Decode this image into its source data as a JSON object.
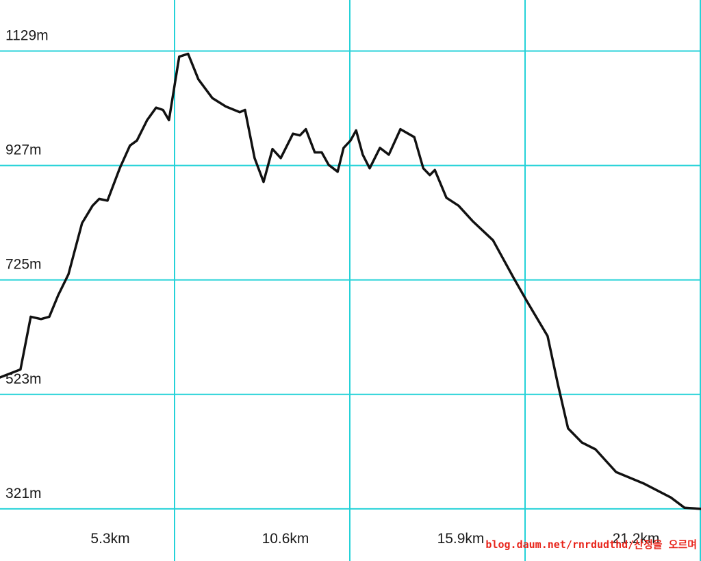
{
  "chart_data": {
    "type": "line",
    "x": [
      0,
      0.62,
      0.93,
      1.24,
      1.49,
      1.76,
      2.07,
      2.48,
      2.8,
      3.0,
      3.25,
      3.62,
      3.93,
      4.14,
      4.45,
      4.72,
      4.93,
      5.11,
      5.42,
      5.69,
      6.0,
      6.42,
      6.83,
      7.25,
      7.41,
      7.7,
      7.97,
      8.24,
      8.49,
      8.86,
      9.07,
      9.25,
      9.52,
      9.73,
      9.94,
      10.21,
      10.39,
      10.6,
      10.77,
      10.97,
      11.18,
      11.49,
      11.76,
      12.11,
      12.53,
      12.8,
      13.0,
      13.15,
      13.5,
      13.87,
      14.29,
      14.91,
      15.53,
      15.94,
      16.56,
      16.87,
      17.18,
      17.6,
      18.01,
      18.63,
      19.46,
      20.29,
      20.7,
      21.2
    ],
    "values": [
      553,
      567,
      660,
      656,
      660,
      698,
      735,
      825,
      856,
      868,
      865,
      922,
      962,
      971,
      1007,
      1029,
      1025,
      1007,
      1119,
      1124,
      1079,
      1046,
      1031,
      1021,
      1025,
      940,
      898,
      956,
      940,
      983,
      980,
      991,
      950,
      950,
      928,
      916,
      958,
      971,
      989,
      946,
      922,
      958,
      946,
      991,
      977,
      922,
      910,
      919,
      870,
      856,
      829,
      795,
      729,
      687,
      626,
      541,
      463,
      438,
      426,
      386,
      366,
      341,
      323,
      321
    ],
    "color": "#111111",
    "xlim": [
      0,
      21.2
    ],
    "ylim": [
      229,
      1219
    ],
    "xticks": [
      {
        "value": 5.3,
        "label": "5.3km"
      },
      {
        "value": 10.6,
        "label": "10.6km"
      },
      {
        "value": 15.9,
        "label": "15.9km"
      },
      {
        "value": 21.2,
        "label": "21.2km"
      }
    ],
    "yticks": [
      {
        "value": 321,
        "label": "321m"
      },
      {
        "value": 523,
        "label": "523m"
      },
      {
        "value": 725,
        "label": "725m"
      },
      {
        "value": 927,
        "label": "927m"
      },
      {
        "value": 1129,
        "label": "1129m"
      }
    ],
    "grid": true,
    "watermark": "blog.daum.net/rnrdudthd/산정을 오르며"
  }
}
